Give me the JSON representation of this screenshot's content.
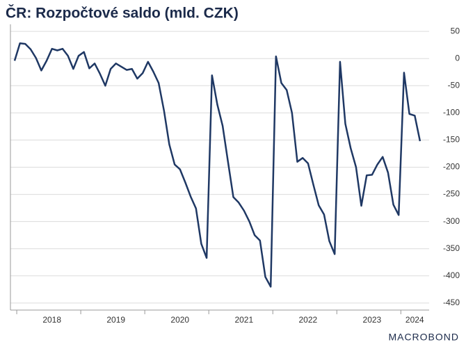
{
  "chart_data": {
    "type": "line",
    "title": "ČR: Rozpočtové saldo (mld. CZK)",
    "categories": [
      null,
      null,
      null,
      null,
      null,
      null,
      null,
      "2018",
      null,
      null,
      null,
      null,
      null,
      null,
      null,
      null,
      null,
      null,
      null,
      "2019",
      null,
      null,
      null,
      null,
      null,
      null,
      null,
      null,
      null,
      null,
      null,
      "2020",
      null,
      null,
      null,
      null,
      null,
      null,
      null,
      null,
      null,
      null,
      null,
      "2021",
      null,
      null,
      null,
      null,
      null,
      null,
      null,
      null,
      null,
      null,
      null,
      "2022",
      null,
      null,
      null,
      null,
      null,
      null,
      null,
      null,
      null,
      null,
      null,
      "2023",
      null,
      null,
      null,
      null,
      null,
      null,
      null,
      "2024",
      null
    ],
    "series": [
      {
        "name": "Rozpočtové saldo",
        "color": "#1f3864",
        "values": [
          -4,
          28,
          27,
          17,
          1,
          -22,
          -4,
          18,
          15,
          18,
          5,
          -19,
          5,
          12,
          -18,
          -9,
          -28,
          -50,
          -19,
          -9,
          -15,
          -21,
          -19,
          -37,
          -27,
          -6,
          -24,
          -45,
          -96,
          -158,
          -195,
          -204,
          -228,
          -254,
          -276,
          -341,
          -367,
          -31,
          -85,
          -124,
          -190,
          -255,
          -265,
          -280,
          -300,
          -325,
          -335,
          -402,
          -420,
          4,
          -45,
          -58,
          -100,
          -190,
          -183,
          -193,
          -232,
          -270,
          -287,
          -336,
          -360,
          -6,
          -120,
          -165,
          -200,
          -271,
          -215,
          -214,
          -195,
          -181,
          -210,
          -269,
          -288,
          -26,
          -102,
          -105,
          -152
        ]
      }
    ],
    "ylim": [
      -463,
      63
    ],
    "yticks": [
      50,
      0,
      -50,
      -100,
      -150,
      -200,
      -250,
      -300,
      -350,
      -400,
      -450
    ],
    "grid": true,
    "logo": "MACROBOND"
  }
}
